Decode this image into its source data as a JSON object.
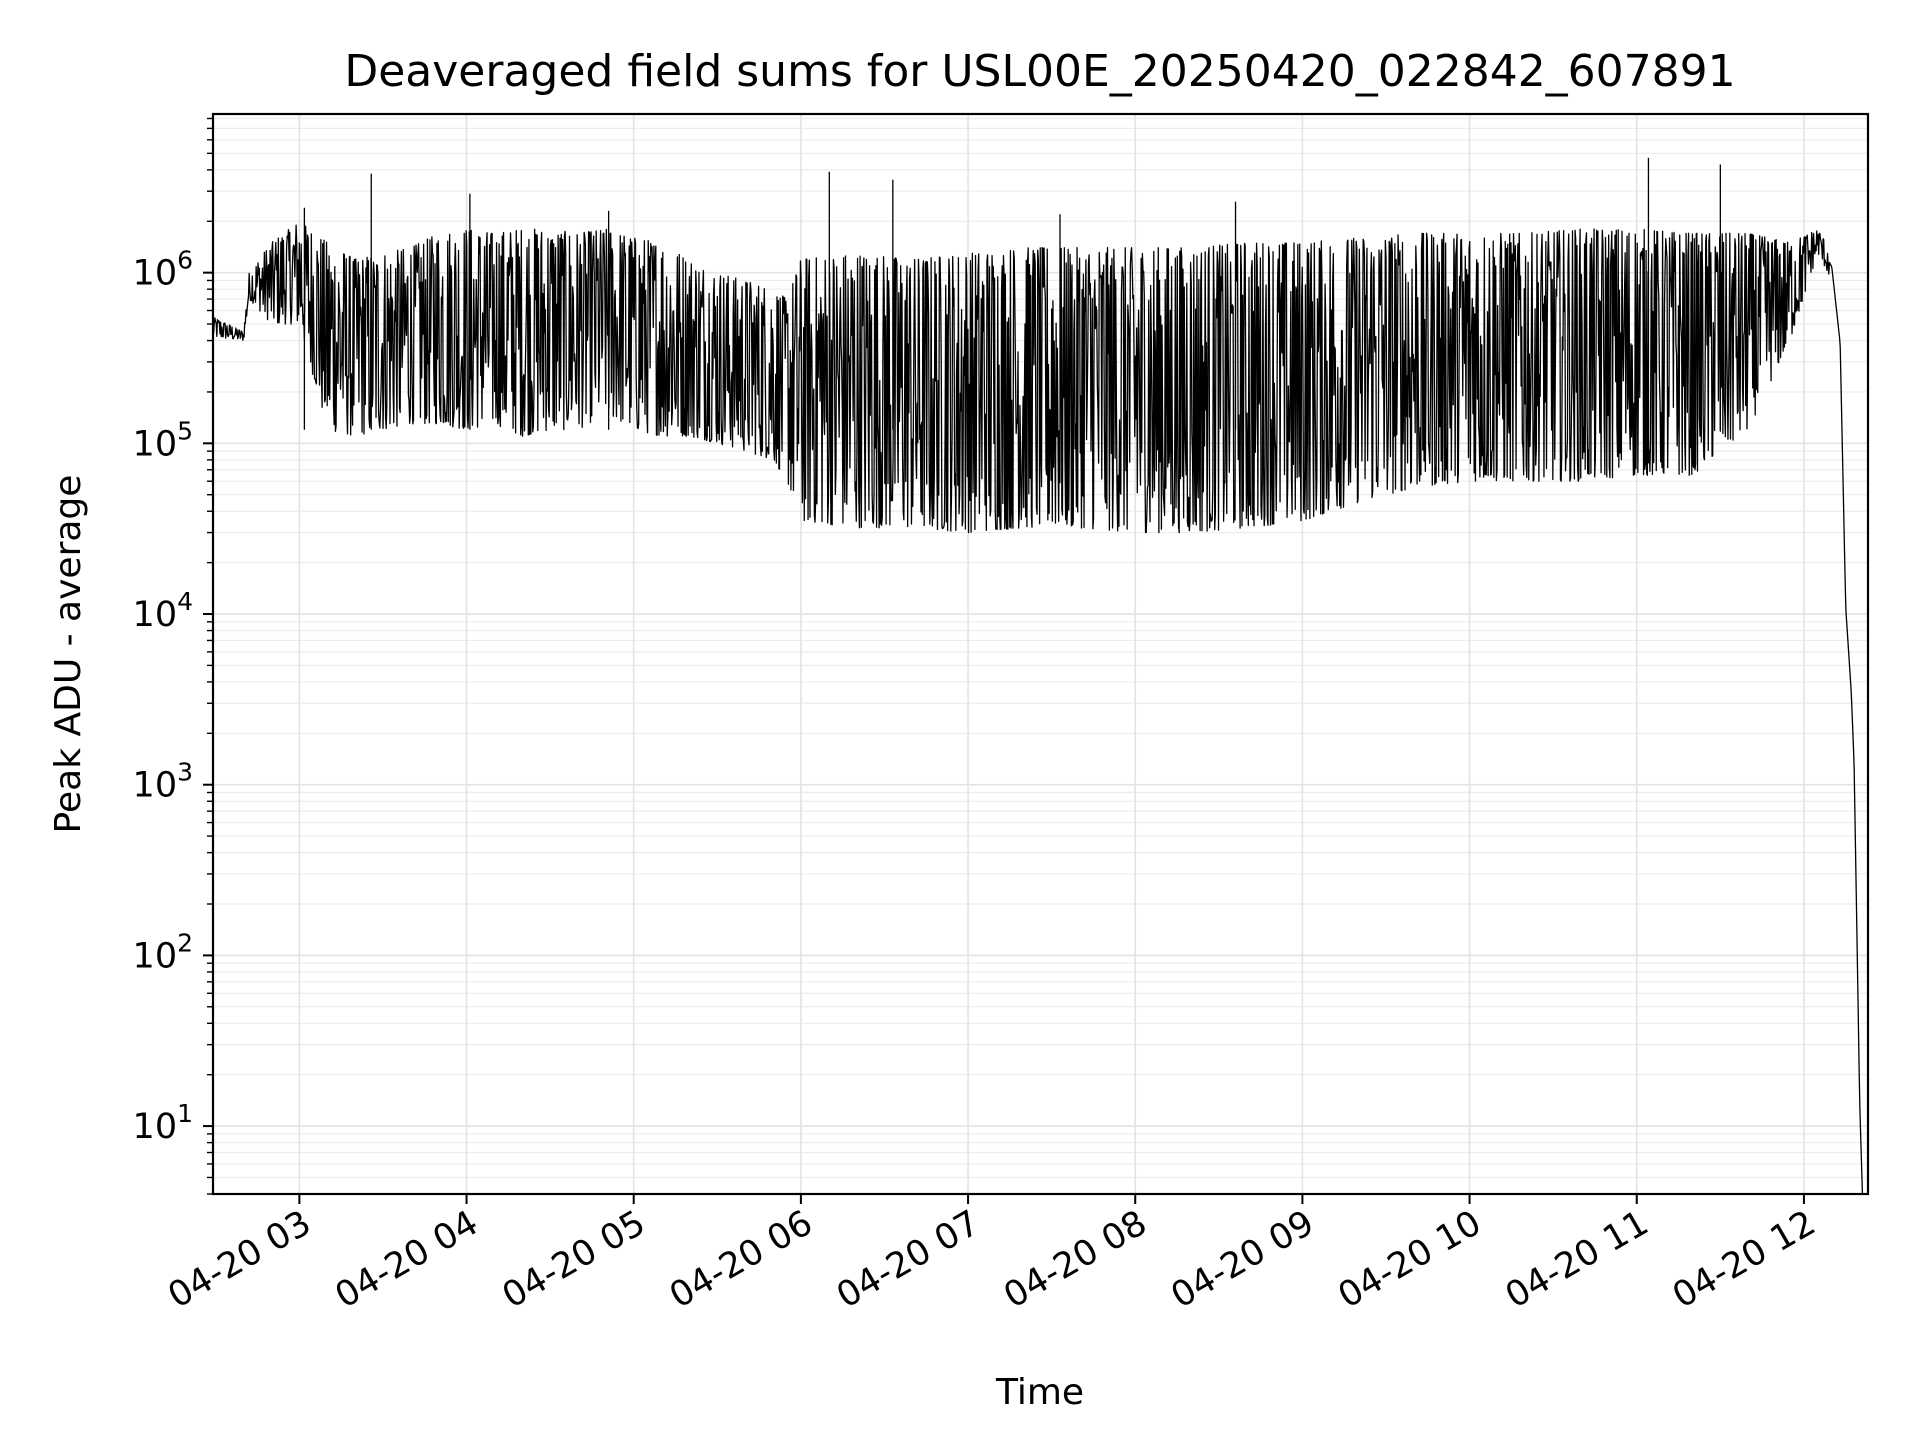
{
  "chart_data": {
    "type": "line",
    "title": "Deaveraged field sums for USL00E_20250420_022842_607891",
    "xlabel": "Time",
    "ylabel": "Peak ADU - average",
    "yscale": "log",
    "grid": true,
    "line_color": "#000000",
    "xlim": [
      "2025-04-20 02:29",
      "2025-04-20 12:23"
    ],
    "ylim": [
      4,
      8500000
    ],
    "x_tick_labels": [
      "04-20 03",
      "04-20 04",
      "04-20 05",
      "04-20 06",
      "04-20 07",
      "04-20 08",
      "04-20 09",
      "04-20 10",
      "04-20 11",
      "04-20 12"
    ],
    "y_tick_labels": [
      {
        "base": "10",
        "exp": "1"
      },
      {
        "base": "10",
        "exp": "2"
      },
      {
        "base": "10",
        "exp": "3"
      },
      {
        "base": "10",
        "exp": "4"
      },
      {
        "base": "10",
        "exp": "5"
      },
      {
        "base": "10",
        "exp": "6"
      }
    ],
    "series": [
      {
        "values_note": "envelope of the dense peak trace",
        "x": [
          "02:29",
          "02:40",
          "02:42",
          "02:50",
          "03:00",
          "03:10",
          "03:20",
          "03:30",
          "03:40",
          "03:50",
          "04:00",
          "04:10",
          "04:20",
          "04:30",
          "04:40",
          "04:50",
          "05:00",
          "05:10",
          "05:20",
          "05:30",
          "05:40",
          "05:50",
          "05:55",
          "06:00",
          "06:20",
          "06:40",
          "07:00",
          "07:20",
          "07:40",
          "08:00",
          "08:20",
          "08:40",
          "09:00",
          "09:20",
          "09:40",
          "10:00",
          "10:20",
          "10:40",
          "11:00",
          "11:20",
          "11:40",
          "11:55",
          "12:05",
          "12:10",
          "12:13",
          "12:15",
          "12:17",
          "12:18",
          "12:19",
          "12:20",
          "12:21"
        ],
        "high": [
          550000,
          450000,
          1000000,
          1500000,
          2000000,
          1500000,
          1200000,
          1300000,
          1400000,
          1700000,
          1800000,
          1700000,
          1800000,
          1800000,
          1700000,
          1800000,
          1600000,
          1500000,
          1200000,
          1000000,
          900000,
          800000,
          700000,
          1200000,
          1300000,
          1200000,
          1300000,
          1400000,
          1400000,
          1400000,
          1400000,
          1500000,
          1500000,
          1600000,
          1700000,
          1700000,
          1700000,
          1800000,
          1800000,
          1700000,
          1700000,
          1500000,
          1800000,
          1300000,
          500000,
          12000,
          4000,
          1500,
          200,
          20,
          4
        ],
        "low": [
          420000,
          400000,
          700000,
          500000,
          500000,
          120000,
          110000,
          120000,
          130000,
          130000,
          120000,
          130000,
          110000,
          120000,
          120000,
          150000,
          120000,
          110000,
          110000,
          100000,
          90000,
          80000,
          60000,
          35000,
          32000,
          32000,
          30000,
          32000,
          32000,
          30000,
          30000,
          32000,
          35000,
          45000,
          55000,
          60000,
          60000,
          60000,
          65000,
          65000,
          120000,
          400000,
          1300000,
          900000,
          300000,
          10000,
          3000,
          1200,
          100,
          10,
          4
        ]
      }
    ]
  }
}
